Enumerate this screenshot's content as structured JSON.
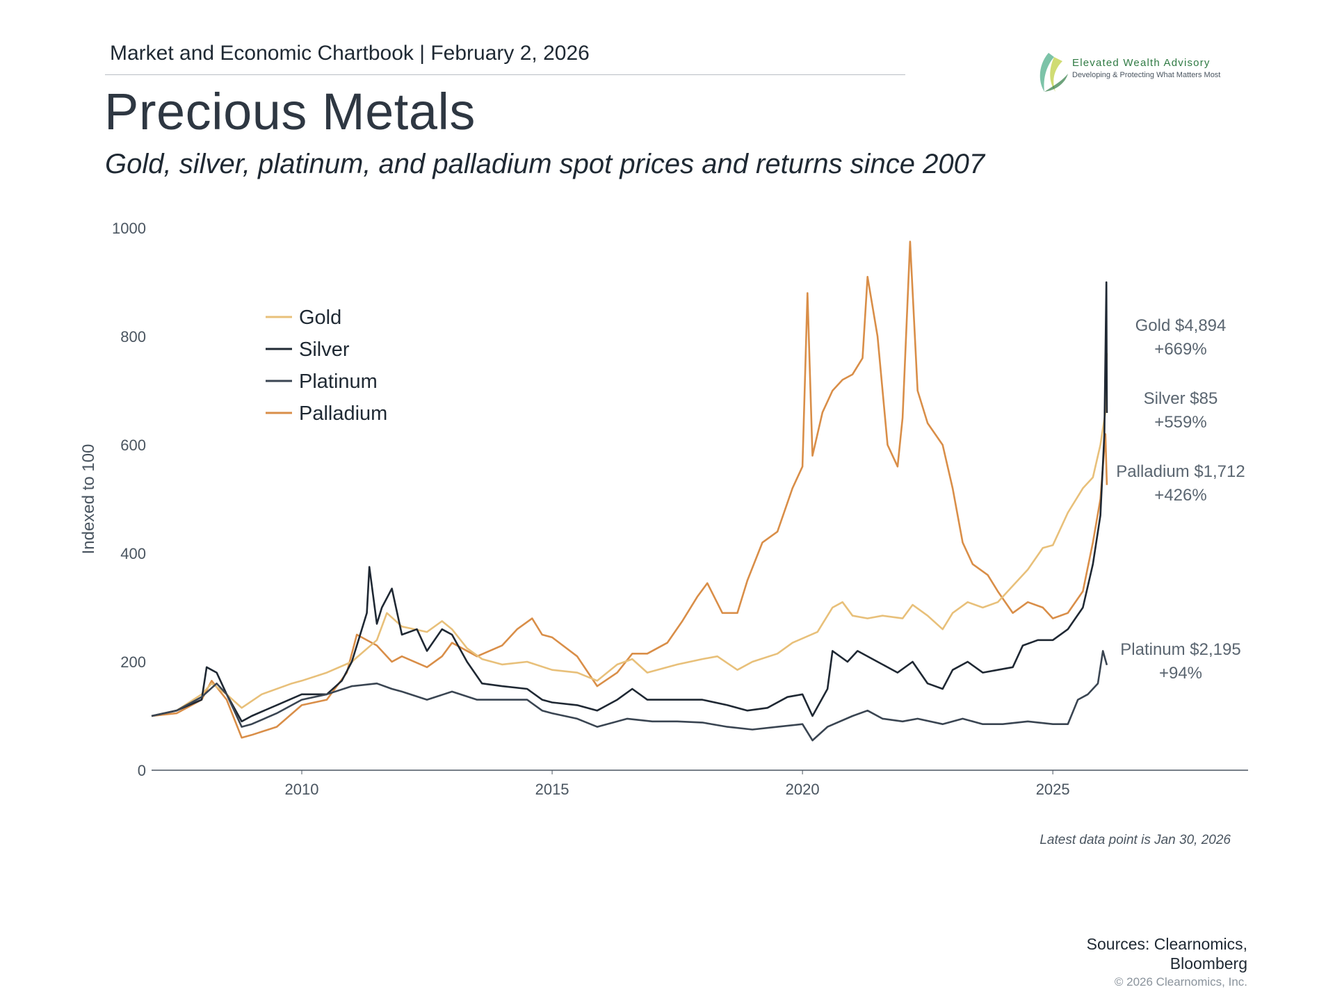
{
  "header": {
    "text": "Market and Economic Chartbook | February 2, 2026",
    "title": "Precious Metals",
    "subtitle": "Gold, silver, platinum, and palladium spot prices and returns since 2007"
  },
  "logo": {
    "name": "Elevated Wealth Advisory",
    "tagline": "Developing & Protecting What Matters Most",
    "colors": [
      "#2f7a43",
      "#7cc3a8",
      "#c8d65a"
    ]
  },
  "footer": {
    "latest_note": "Latest data point is Jan 30, 2026",
    "sources_line1": "Sources: Clearnomics,",
    "sources_line2": "Bloomberg",
    "copyright": "© 2026 Clearnomics, Inc."
  },
  "chart_data": {
    "type": "line",
    "title": "Precious Metals",
    "subtitle": "Gold, silver, platinum, and palladium spot prices and returns since 2007",
    "xlabel": "",
    "ylabel": "Indexed to 100",
    "xlim": [
      2007.0,
      2028.9
    ],
    "ylim": [
      0,
      1000
    ],
    "xticks": [
      2010,
      2015,
      2020,
      2025
    ],
    "yticks": [
      0,
      200,
      400,
      600,
      800,
      1000
    ],
    "grid": false,
    "legend_position": "top-left",
    "series": [
      {
        "name": "Gold",
        "color": "#e8c07a",
        "end_label_1": "Gold $4,894",
        "end_label_2": "+669%",
        "points": [
          [
            2007.0,
            100
          ],
          [
            2007.5,
            110
          ],
          [
            2008.0,
            140
          ],
          [
            2008.2,
            160
          ],
          [
            2008.5,
            140
          ],
          [
            2008.8,
            115
          ],
          [
            2009.2,
            140
          ],
          [
            2009.8,
            160
          ],
          [
            2010.0,
            165
          ],
          [
            2010.5,
            180
          ],
          [
            2011.0,
            200
          ],
          [
            2011.5,
            240
          ],
          [
            2011.7,
            290
          ],
          [
            2012.0,
            265
          ],
          [
            2012.5,
            255
          ],
          [
            2012.8,
            275
          ],
          [
            2013.0,
            260
          ],
          [
            2013.3,
            225
          ],
          [
            2013.6,
            205
          ],
          [
            2014.0,
            195
          ],
          [
            2014.5,
            200
          ],
          [
            2015.0,
            185
          ],
          [
            2015.5,
            180
          ],
          [
            2015.9,
            165
          ],
          [
            2016.3,
            195
          ],
          [
            2016.6,
            205
          ],
          [
            2016.9,
            180
          ],
          [
            2017.5,
            195
          ],
          [
            2018.0,
            205
          ],
          [
            2018.3,
            210
          ],
          [
            2018.7,
            185
          ],
          [
            2019.0,
            200
          ],
          [
            2019.5,
            215
          ],
          [
            2019.8,
            235
          ],
          [
            2020.3,
            255
          ],
          [
            2020.6,
            300
          ],
          [
            2020.8,
            310
          ],
          [
            2021.0,
            285
          ],
          [
            2021.3,
            280
          ],
          [
            2021.6,
            285
          ],
          [
            2022.0,
            280
          ],
          [
            2022.2,
            305
          ],
          [
            2022.5,
            285
          ],
          [
            2022.8,
            260
          ],
          [
            2023.0,
            290
          ],
          [
            2023.3,
            310
          ],
          [
            2023.6,
            300
          ],
          [
            2023.9,
            310
          ],
          [
            2024.2,
            340
          ],
          [
            2024.5,
            370
          ],
          [
            2024.8,
            410
          ],
          [
            2025.0,
            415
          ],
          [
            2025.3,
            475
          ],
          [
            2025.6,
            520
          ],
          [
            2025.8,
            540
          ],
          [
            2025.95,
            600
          ],
          [
            2026.05,
            660
          ],
          [
            2026.08,
            769
          ]
        ]
      },
      {
        "name": "Silver",
        "color": "#1f2833",
        "end_label_1": "Silver $85",
        "end_label_2": "+559%",
        "points": [
          [
            2007.0,
            100
          ],
          [
            2007.5,
            110
          ],
          [
            2008.0,
            130
          ],
          [
            2008.1,
            190
          ],
          [
            2008.3,
            180
          ],
          [
            2008.5,
            140
          ],
          [
            2008.8,
            90
          ],
          [
            2009.0,
            100
          ],
          [
            2009.5,
            120
          ],
          [
            2010.0,
            140
          ],
          [
            2010.5,
            140
          ],
          [
            2010.8,
            165
          ],
          [
            2011.0,
            200
          ],
          [
            2011.3,
            290
          ],
          [
            2011.35,
            375
          ],
          [
            2011.5,
            270
          ],
          [
            2011.6,
            300
          ],
          [
            2011.8,
            335
          ],
          [
            2012.0,
            250
          ],
          [
            2012.3,
            260
          ],
          [
            2012.5,
            220
          ],
          [
            2012.8,
            260
          ],
          [
            2013.0,
            250
          ],
          [
            2013.3,
            200
          ],
          [
            2013.6,
            160
          ],
          [
            2014.0,
            155
          ],
          [
            2014.5,
            150
          ],
          [
            2014.8,
            130
          ],
          [
            2015.0,
            125
          ],
          [
            2015.5,
            120
          ],
          [
            2015.9,
            110
          ],
          [
            2016.3,
            130
          ],
          [
            2016.6,
            150
          ],
          [
            2016.9,
            130
          ],
          [
            2017.5,
            130
          ],
          [
            2018.0,
            130
          ],
          [
            2018.5,
            120
          ],
          [
            2018.9,
            110
          ],
          [
            2019.3,
            115
          ],
          [
            2019.7,
            135
          ],
          [
            2020.0,
            140
          ],
          [
            2020.2,
            100
          ],
          [
            2020.5,
            150
          ],
          [
            2020.6,
            220
          ],
          [
            2020.9,
            200
          ],
          [
            2021.1,
            220
          ],
          [
            2021.5,
            200
          ],
          [
            2021.9,
            180
          ],
          [
            2022.2,
            200
          ],
          [
            2022.5,
            160
          ],
          [
            2022.8,
            150
          ],
          [
            2023.0,
            185
          ],
          [
            2023.3,
            200
          ],
          [
            2023.6,
            180
          ],
          [
            2023.9,
            185
          ],
          [
            2024.2,
            190
          ],
          [
            2024.4,
            230
          ],
          [
            2024.7,
            240
          ],
          [
            2025.0,
            240
          ],
          [
            2025.3,
            260
          ],
          [
            2025.6,
            300
          ],
          [
            2025.8,
            380
          ],
          [
            2025.95,
            470
          ],
          [
            2026.03,
            620
          ],
          [
            2026.07,
            900
          ],
          [
            2026.08,
            659
          ]
        ]
      },
      {
        "name": "Platinum",
        "color": "#3a4552",
        "end_label_1": "Platinum $2,195",
        "end_label_2": "+94%",
        "points": [
          [
            2007.0,
            100
          ],
          [
            2007.5,
            110
          ],
          [
            2008.0,
            135
          ],
          [
            2008.3,
            160
          ],
          [
            2008.5,
            140
          ],
          [
            2008.8,
            80
          ],
          [
            2009.0,
            85
          ],
          [
            2009.5,
            105
          ],
          [
            2010.0,
            130
          ],
          [
            2010.5,
            140
          ],
          [
            2011.0,
            155
          ],
          [
            2011.5,
            160
          ],
          [
            2011.8,
            150
          ],
          [
            2012.0,
            145
          ],
          [
            2012.5,
            130
          ],
          [
            2013.0,
            145
          ],
          [
            2013.5,
            130
          ],
          [
            2014.0,
            130
          ],
          [
            2014.5,
            130
          ],
          [
            2014.8,
            110
          ],
          [
            2015.0,
            105
          ],
          [
            2015.5,
            95
          ],
          [
            2015.9,
            80
          ],
          [
            2016.5,
            95
          ],
          [
            2017.0,
            90
          ],
          [
            2017.5,
            90
          ],
          [
            2018.0,
            88
          ],
          [
            2018.5,
            80
          ],
          [
            2019.0,
            75
          ],
          [
            2019.5,
            80
          ],
          [
            2020.0,
            85
          ],
          [
            2020.2,
            55
          ],
          [
            2020.5,
            80
          ],
          [
            2021.0,
            100
          ],
          [
            2021.3,
            110
          ],
          [
            2021.6,
            95
          ],
          [
            2022.0,
            90
          ],
          [
            2022.3,
            95
          ],
          [
            2022.8,
            85
          ],
          [
            2023.2,
            95
          ],
          [
            2023.6,
            85
          ],
          [
            2024.0,
            85
          ],
          [
            2024.5,
            90
          ],
          [
            2025.0,
            85
          ],
          [
            2025.3,
            85
          ],
          [
            2025.5,
            130
          ],
          [
            2025.7,
            140
          ],
          [
            2025.9,
            160
          ],
          [
            2026.0,
            220
          ],
          [
            2026.08,
            194
          ]
        ]
      },
      {
        "name": "Palladium",
        "color": "#d98e48",
        "end_label_1": "Palladium $1,712",
        "end_label_2": "+426%",
        "points": [
          [
            2007.0,
            100
          ],
          [
            2007.5,
            105
          ],
          [
            2008.0,
            130
          ],
          [
            2008.2,
            165
          ],
          [
            2008.5,
            130
          ],
          [
            2008.8,
            60
          ],
          [
            2009.0,
            65
          ],
          [
            2009.5,
            80
          ],
          [
            2010.0,
            120
          ],
          [
            2010.5,
            130
          ],
          [
            2010.9,
            180
          ],
          [
            2011.1,
            250
          ],
          [
            2011.5,
            230
          ],
          [
            2011.8,
            200
          ],
          [
            2012.0,
            210
          ],
          [
            2012.5,
            190
          ],
          [
            2012.8,
            210
          ],
          [
            2013.0,
            235
          ],
          [
            2013.5,
            210
          ],
          [
            2014.0,
            230
          ],
          [
            2014.3,
            260
          ],
          [
            2014.6,
            280
          ],
          [
            2014.8,
            250
          ],
          [
            2015.0,
            245
          ],
          [
            2015.5,
            210
          ],
          [
            2015.9,
            155
          ],
          [
            2016.3,
            180
          ],
          [
            2016.6,
            215
          ],
          [
            2016.9,
            215
          ],
          [
            2017.3,
            235
          ],
          [
            2017.6,
            275
          ],
          [
            2017.9,
            320
          ],
          [
            2018.1,
            345
          ],
          [
            2018.4,
            290
          ],
          [
            2018.7,
            290
          ],
          [
            2018.9,
            350
          ],
          [
            2019.2,
            420
          ],
          [
            2019.5,
            440
          ],
          [
            2019.8,
            520
          ],
          [
            2020.0,
            560
          ],
          [
            2020.1,
            880
          ],
          [
            2020.2,
            580
          ],
          [
            2020.4,
            660
          ],
          [
            2020.6,
            700
          ],
          [
            2020.8,
            720
          ],
          [
            2021.0,
            730
          ],
          [
            2021.2,
            760
          ],
          [
            2021.3,
            910
          ],
          [
            2021.5,
            800
          ],
          [
            2021.7,
            600
          ],
          [
            2021.9,
            560
          ],
          [
            2022.0,
            650
          ],
          [
            2022.15,
            975
          ],
          [
            2022.3,
            700
          ],
          [
            2022.5,
            640
          ],
          [
            2022.8,
            600
          ],
          [
            2023.0,
            520
          ],
          [
            2023.2,
            420
          ],
          [
            2023.4,
            380
          ],
          [
            2023.7,
            360
          ],
          [
            2023.9,
            330
          ],
          [
            2024.2,
            290
          ],
          [
            2024.5,
            310
          ],
          [
            2024.8,
            300
          ],
          [
            2025.0,
            280
          ],
          [
            2025.3,
            290
          ],
          [
            2025.6,
            330
          ],
          [
            2025.8,
            420
          ],
          [
            2025.95,
            500
          ],
          [
            2026.05,
            620
          ],
          [
            2026.08,
            526
          ]
        ]
      }
    ]
  }
}
